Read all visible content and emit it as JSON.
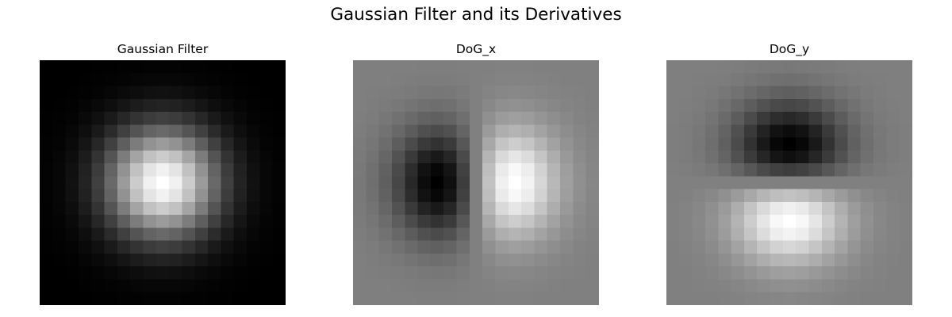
{
  "figure": {
    "title": "Gaussian Filter and its Derivatives"
  },
  "chart_data": [
    {
      "type": "heatmap",
      "title": "Gaussian Filter",
      "grid_size": [
        19,
        19
      ],
      "colormap": "gray",
      "axes": "off",
      "kernel": "gaussian",
      "sigma_cells": 3.0,
      "range": [
        0,
        1
      ]
    },
    {
      "type": "heatmap",
      "title": "DoG_x",
      "grid_size": [
        19,
        19
      ],
      "colormap": "gray",
      "axes": "off",
      "kernel": "derivative-of-gaussian-x",
      "sigma_cells": 3.0,
      "range": [
        -1,
        1
      ]
    },
    {
      "type": "heatmap",
      "title": "DoG_y",
      "grid_size": [
        19,
        19
      ],
      "colormap": "gray",
      "axes": "off",
      "kernel": "derivative-of-gaussian-y",
      "sigma_cells": 3.0,
      "range": [
        -1,
        1
      ]
    }
  ]
}
